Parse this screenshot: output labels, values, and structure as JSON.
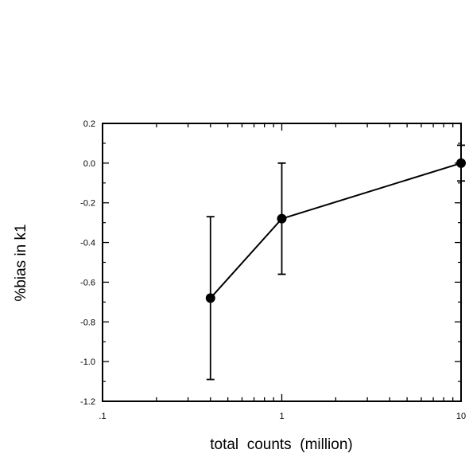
{
  "chart_data": {
    "type": "line",
    "title": "",
    "xlabel": "total  counts  (million)",
    "ylabel": "%bias in k1",
    "xscale": "log",
    "xlim": [
      0.1,
      10
    ],
    "ylim": [
      -1.2,
      0.2
    ],
    "grid": false,
    "legend": "none",
    "x_tick_labels": [
      {
        "value": 0.1,
        "label": ".1"
      },
      {
        "value": 1,
        "label": "1"
      },
      {
        "value": 10,
        "label": "10"
      }
    ],
    "y_tick_labels": [
      {
        "value": 0.2,
        "label": "0.2"
      },
      {
        "value": 0.0,
        "label": "0.0"
      },
      {
        "value": -0.2,
        "label": "-0.2"
      },
      {
        "value": -0.4,
        "label": "-0.4"
      },
      {
        "value": -0.6,
        "label": "-0.6"
      },
      {
        "value": -0.8,
        "label": "-0.8"
      },
      {
        "value": -1.0,
        "label": "-1.0"
      },
      {
        "value": -1.2,
        "label": "-1.2"
      }
    ],
    "series": [
      {
        "color": "#000000",
        "marker": "filled-circle",
        "points": [
          {
            "x": 0.4,
            "y": -0.68,
            "err": 0.41
          },
          {
            "x": 1.0,
            "y": -0.28,
            "err": 0.28
          },
          {
            "x": 10.0,
            "y": 0.0,
            "err": 0.09
          }
        ]
      }
    ]
  }
}
